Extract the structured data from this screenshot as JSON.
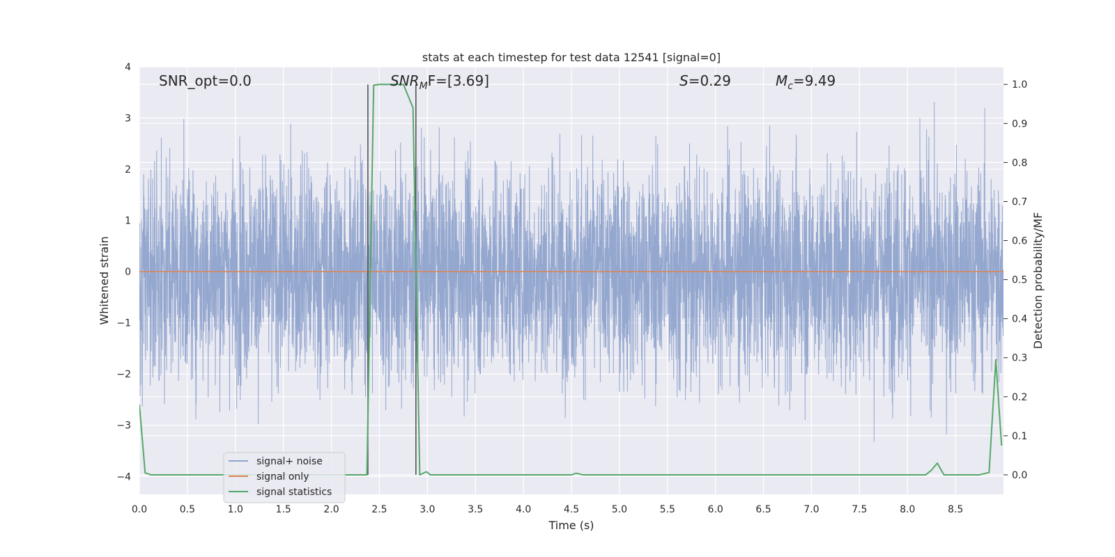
{
  "chart_data": {
    "type": "line",
    "title": "stats at each timestep for test data 12541 [signal=0]",
    "xlabel": "Time (s)",
    "ylabel_left": "Whitened strain",
    "ylabel_right": "Detection probability/MF",
    "xlim": [
      0.0,
      9.0
    ],
    "ylim_left": [
      -4.35,
      4.0
    ],
    "ylim_right": [
      -0.05,
      1.045
    ],
    "x_ticks": [
      "0.0",
      "0.5",
      "1.0",
      "1.5",
      "2.0",
      "2.5",
      "3.0",
      "3.5",
      "4.0",
      "4.5",
      "5.0",
      "5.5",
      "6.0",
      "6.5",
      "7.0",
      "7.5",
      "8.0",
      "8.5"
    ],
    "y_ticks_left": [
      "4",
      "3",
      "2",
      "1",
      "0",
      "−1",
      "−2",
      "−3",
      "−4"
    ],
    "y_ticks_right": [
      "1.0",
      "0.9",
      "0.8",
      "0.7",
      "0.6",
      "0.5",
      "0.4",
      "0.3",
      "0.2",
      "0.1",
      "0.0"
    ],
    "grid": true,
    "legend_position": "lower-left",
    "annotations": {
      "snr_opt": "SNR_opt=0.0",
      "snr_mf_base": "SNR",
      "snr_mf_sub": "M",
      "snr_mf_rest": "F=[3.69]",
      "s_base": "S",
      "s_rest": "=0.29",
      "mc_base": "M",
      "mc_sub": "c",
      "mc_rest": "=9.49"
    },
    "markers": {
      "vertical_lines_x": [
        2.38,
        2.88
      ],
      "vertical_line_color": "#4a4a4a"
    },
    "series": [
      {
        "name": "signal+ noise",
        "color": "#8fa3cc",
        "axis": "left",
        "sample_rate_hz": 512,
        "spread_stdev": 1.0,
        "note_values": "dense noise trace, values roughly in [-4.0, 3.6]"
      },
      {
        "name": "signal only",
        "color": "#dd8452",
        "axis": "left",
        "x": [
          0.0,
          9.0
        ],
        "y": [
          0.0,
          0.0
        ]
      },
      {
        "name": "signal statistics",
        "color": "#55a868",
        "axis": "right",
        "x": [
          0.0,
          0.06,
          0.12,
          0.5,
          1.0,
          1.5,
          2.0,
          2.37,
          2.44,
          2.5,
          2.75,
          2.85,
          2.92,
          2.99,
          3.03,
          3.5,
          4.0,
          4.5,
          4.55,
          4.62,
          5.0,
          6.0,
          7.0,
          8.0,
          8.19,
          8.25,
          8.31,
          8.38,
          8.5,
          8.75,
          8.85,
          8.92,
          8.98
        ],
        "y": [
          0.18,
          0.005,
          0.0,
          0.0,
          0.0,
          0.0,
          0.0,
          0.0,
          0.998,
          1.0,
          1.0,
          0.94,
          0.0,
          0.008,
          0.0,
          0.0,
          0.0,
          0.0,
          0.004,
          0.0,
          0.0,
          0.0,
          0.0,
          0.0,
          0.0,
          0.012,
          0.03,
          0.0,
          0.0,
          0.0,
          0.006,
          0.295,
          0.075
        ]
      }
    ]
  }
}
